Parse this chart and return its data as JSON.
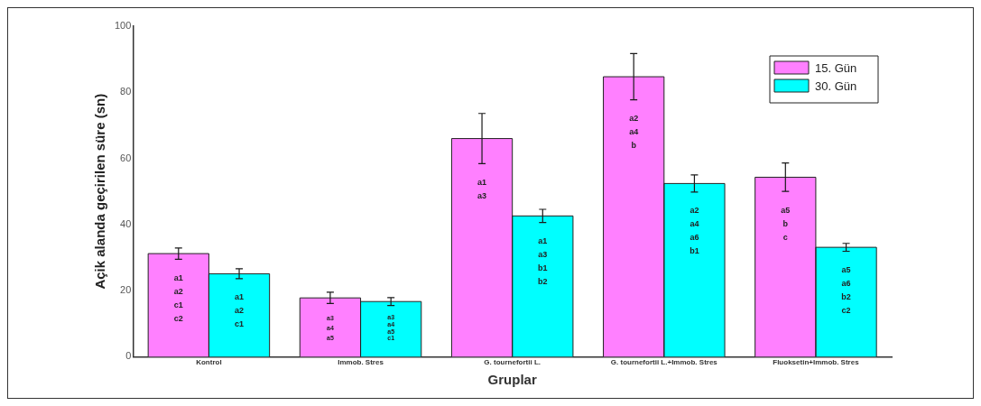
{
  "chart_data": {
    "type": "bar",
    "xlabel": "Gruplar",
    "ylabel": "Açik alanda geçirilen süre (sn)",
    "categories": [
      "Kontrol",
      "Immob. Stres",
      "G. tournefortii L.",
      "G. tournefortii L.+Immob. Stres",
      "Fluoksetin+Immob. Stres"
    ],
    "series": [
      {
        "name": "15. Gün",
        "color": "#ff80ff",
        "values": [
          31.2,
          17.8,
          66,
          84.7,
          54.3
        ],
        "errors": [
          1.7,
          1.7,
          7.6,
          7,
          4.3
        ],
        "value_labels": [
          "a1\na2\nc1\nc2",
          "a3\na4\na5",
          "a1\na3",
          "a2\na4\nb",
          "a5\nb\nc"
        ]
      },
      {
        "name": "30. Gün",
        "color": "#00ffff",
        "values": [
          25.1,
          16.7,
          42.6,
          52.4,
          33.1
        ],
        "errors": [
          1.5,
          1.2,
          2,
          2.6,
          1.2
        ],
        "value_labels": [
          "a1\na2\nc1",
          "a3\na4\na5\nc1",
          "a1\na3\nb1\nb2",
          "a2\na4\na6\nb1",
          "a5\na6\nb2\nc2"
        ]
      }
    ],
    "ylim": [
      0,
      100
    ],
    "yticks": [
      0,
      20,
      40,
      60,
      80,
      100
    ],
    "grid": false,
    "legend": "top right"
  }
}
